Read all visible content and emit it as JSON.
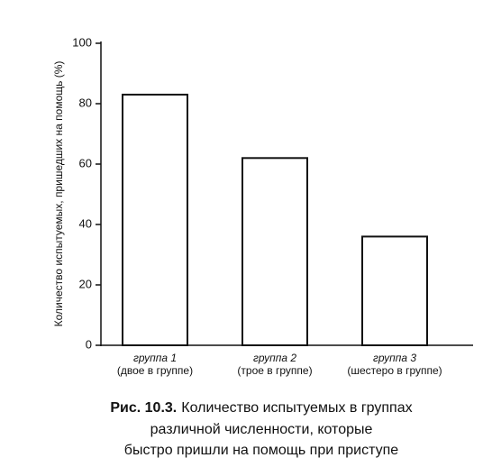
{
  "chart_data": {
    "type": "bar",
    "y_label": "Количество испытуемых, пришедших на помощь (%)",
    "categories": [
      [
        "группа 1",
        "(двое в группе)"
      ],
      [
        "группа 2",
        "(трое в группе)"
      ],
      [
        "группа 3",
        "(шестеро в группе)"
      ]
    ],
    "values": [
      83,
      62,
      36
    ],
    "color": "#ffffff",
    "ylim": [
      0,
      100
    ],
    "yticks": [
      0,
      20,
      40,
      60,
      80,
      100
    ]
  },
  "caption": {
    "label": "Рис. 10.3.",
    "lines": [
      "Количество испытуемых в группах",
      "различной численности, которые",
      "быстро пришли на помощь при приступе"
    ]
  }
}
